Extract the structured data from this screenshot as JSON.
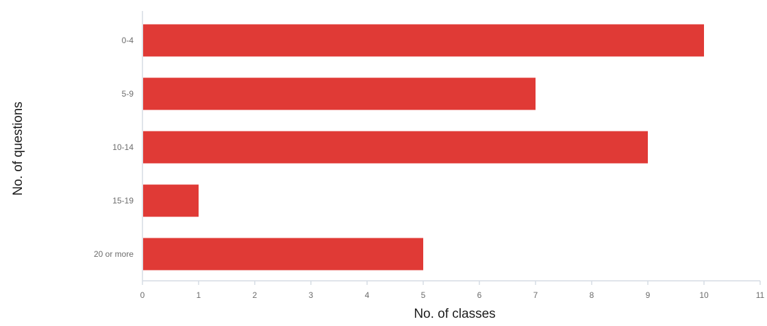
{
  "chart_data": {
    "type": "bar",
    "orientation": "horizontal",
    "categories": [
      "0-4",
      "5-9",
      "10-14",
      "15-19",
      "20 or more"
    ],
    "values": [
      10,
      7,
      9,
      1,
      5
    ],
    "xlabel": "No. of classes",
    "ylabel": "No. of questions",
    "xlim": [
      0,
      11
    ],
    "xticks": [
      "0",
      "1",
      "2",
      "3",
      "4",
      "5",
      "6",
      "7",
      "8",
      "9",
      "10",
      "11"
    ],
    "grid": false,
    "legend": "none",
    "colors": {
      "bar": "#e03a36",
      "axis": "#d6dce4"
    }
  }
}
